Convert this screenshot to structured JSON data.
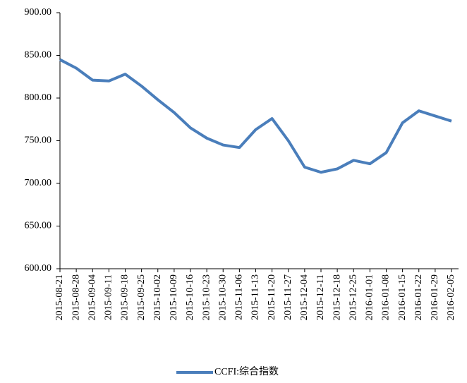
{
  "chart_data": {
    "type": "line",
    "categories": [
      "2015-08-21",
      "2015-08-28",
      "2015-09-04",
      "2015-09-11",
      "2015-09-18",
      "2015-09-25",
      "2015-10-02",
      "2015-10-09",
      "2015-10-16",
      "2015-10-23",
      "2015-10-30",
      "2015-11-06",
      "2015-11-13",
      "2015-11-20",
      "2015-11-27",
      "2015-12-04",
      "2015-12-11",
      "2015-12-18",
      "2015-12-25",
      "2016-01-01",
      "2016-01-08",
      "2016-01-15",
      "2016-01-22",
      "2016-01-29",
      "2016-02-05"
    ],
    "series": [
      {
        "name": "CCFI:综合指数",
        "color": "#4a7ebb",
        "values": [
          845,
          835,
          821,
          820,
          828,
          814,
          798,
          783,
          765,
          753,
          745,
          742,
          763,
          776,
          750,
          719,
          713,
          717,
          727,
          723,
          736,
          771,
          785,
          779,
          773
        ]
      }
    ],
    "ylim": [
      600,
      900
    ],
    "yticks": [
      {
        "value": 600,
        "label": "600.00"
      },
      {
        "value": 650,
        "label": "650.00"
      },
      {
        "value": 700,
        "label": "700.00"
      },
      {
        "value": 750,
        "label": "750.00"
      },
      {
        "value": 800,
        "label": "800.00"
      },
      {
        "value": 850,
        "label": "850.00"
      },
      {
        "value": 900,
        "label": "900.00"
      }
    ],
    "grid": false,
    "legend": "bottom"
  }
}
